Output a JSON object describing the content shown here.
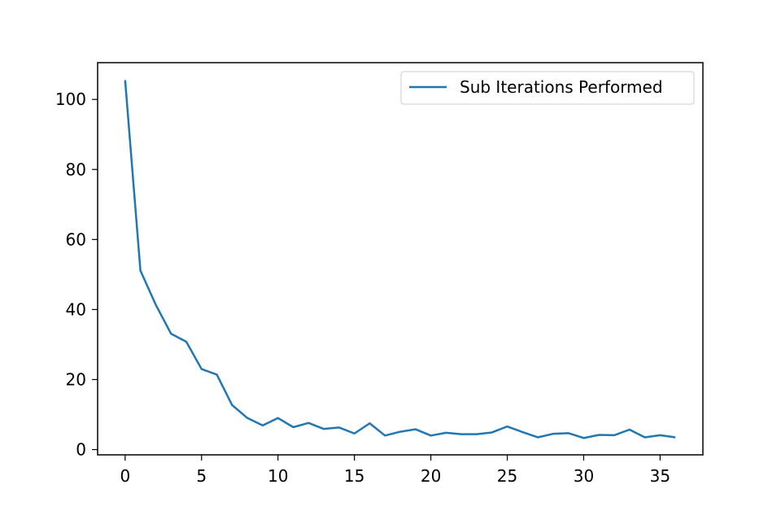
{
  "chart_data": {
    "type": "line",
    "title": "",
    "xlabel": "",
    "ylabel": "",
    "xlim": [
      -1.8,
      37.8
    ],
    "ylim": [
      -1.5,
      110.5
    ],
    "xticks": [
      0,
      5,
      10,
      15,
      20,
      25,
      30,
      35
    ],
    "yticks": [
      0,
      20,
      40,
      60,
      80,
      100
    ],
    "xtick_labels": [
      "0",
      "5",
      "10",
      "15",
      "20",
      "25",
      "30",
      "35"
    ],
    "ytick_labels": [
      "0",
      "20",
      "40",
      "60",
      "80",
      "100"
    ],
    "grid": false,
    "legend_position": "top-right",
    "series": [
      {
        "name": "Sub Iterations Performed",
        "color": "#1f77b4",
        "x": [
          0,
          1,
          2,
          3,
          4,
          5,
          6,
          7,
          8,
          9,
          10,
          11,
          12,
          13,
          14,
          15,
          16,
          17,
          18,
          19,
          20,
          21,
          22,
          23,
          24,
          25,
          26,
          27,
          28,
          29,
          30,
          31,
          32,
          33,
          34,
          35,
          36
        ],
        "y": [
          105.5,
          51.1,
          41.4,
          33.1,
          30.8,
          23,
          21.4,
          12.7,
          9,
          6.9,
          9,
          6.4,
          7.6,
          5.9,
          6.3,
          4.6,
          7.5,
          4,
          5.1,
          5.8,
          4,
          4.8,
          4.4,
          4.4,
          4.9,
          6.6,
          5,
          3.5,
          4.5,
          4.7,
          3.3,
          4.2,
          4.1,
          5.7,
          3.5,
          4.1,
          3.5
        ]
      }
    ]
  }
}
